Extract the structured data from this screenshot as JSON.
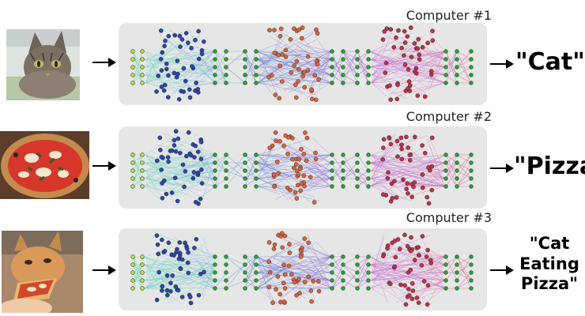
{
  "rows": [
    {
      "computer_label": "Computer #1",
      "output_lines": [
        "\"Cat\""
      ]
    },
    {
      "computer_label": "Computer #2",
      "output_lines": [
        "\"Pizza\""
      ]
    },
    {
      "computer_label": "Computer #3",
      "output_lines": [
        "\"Cat",
        "Eating",
        "Pizza\""
      ]
    }
  ],
  "colors": {
    "panel": "#e6e6e6",
    "layer_green": "#2e9b3b",
    "layer_yellow": "#c9d43a",
    "cluster_blue": "#2b46a8",
    "cluster_orange": "#d8613a",
    "cluster_crimson": "#b8334a",
    "arrow": "#000000"
  },
  "icons": [
    "cat-photo",
    "pizza-photo",
    "cat-eating-pizza-photo",
    "right-arrow-icon"
  ]
}
